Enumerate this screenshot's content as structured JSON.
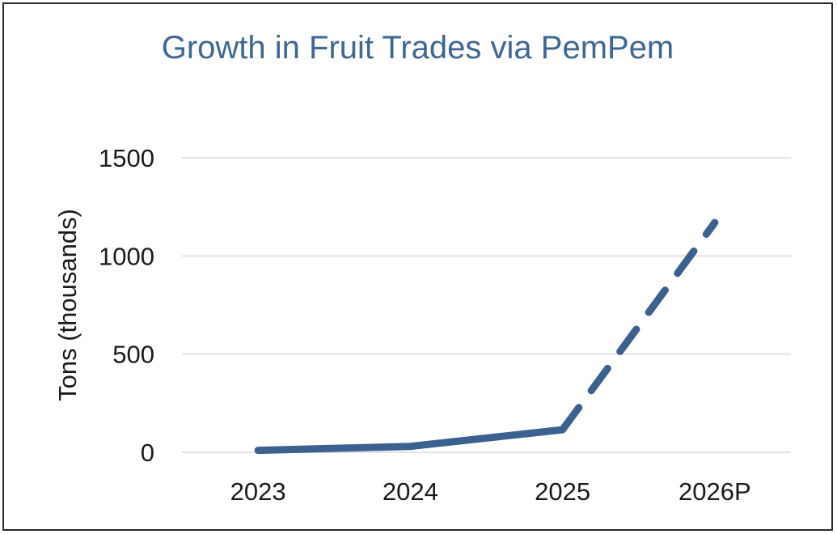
{
  "chart_data": {
    "type": "line",
    "title": "Growth in Fruit Trades via PemPem",
    "xlabel": "",
    "ylabel": "Tons (thousands)",
    "categories": [
      "2023",
      "2024",
      "2025",
      "2026P"
    ],
    "series": [
      {
        "values": [
          10,
          30,
          115,
          1170
        ],
        "projected_from_index": 2
      }
    ],
    "ylim": [
      0,
      1500
    ],
    "yticks": [
      0,
      500,
      1000,
      1500
    ],
    "grid": true,
    "legend": "none",
    "colors": {
      "line": "#3b6191",
      "title": "#3d6794",
      "grid": "#e3e3e3"
    }
  }
}
